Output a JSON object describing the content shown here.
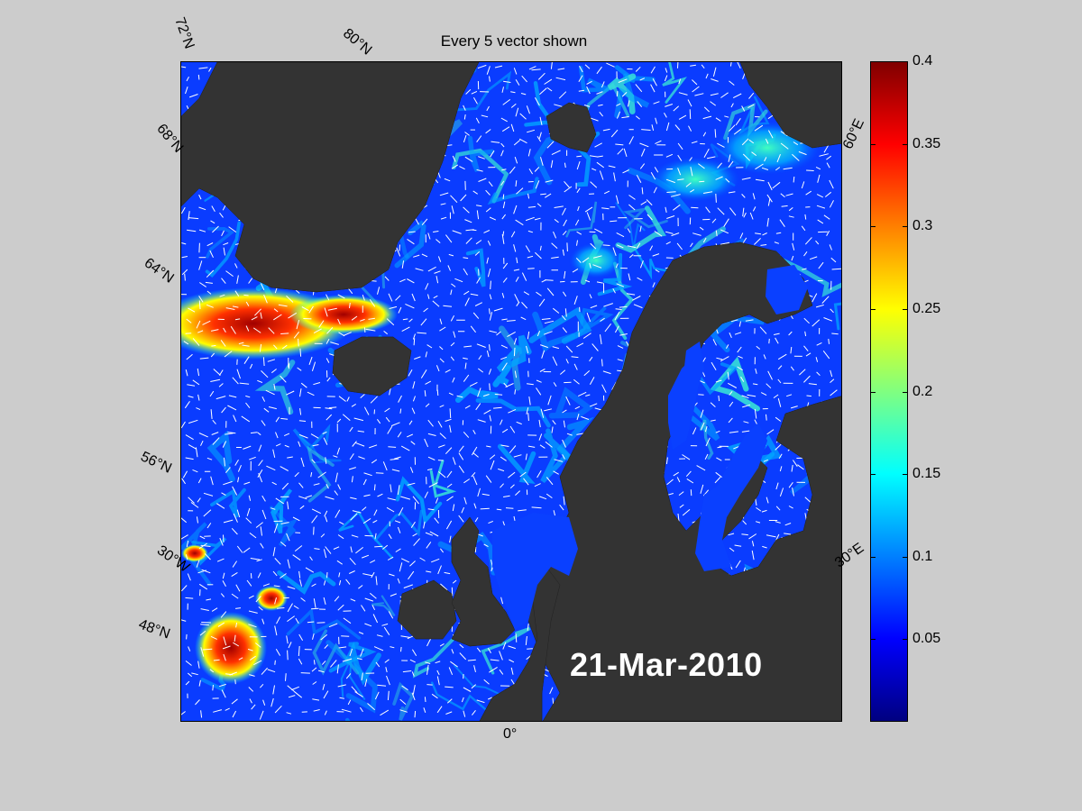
{
  "figure": {
    "title": "Every 5 vector shown",
    "date": "21-Mar-2010"
  },
  "latitude_labels": [
    "72°N",
    "80°N",
    "68°N",
    "64°N",
    "56°N",
    "48°N"
  ],
  "longitude_labels": [
    "60°E",
    "30°E",
    "30°W",
    "0°"
  ],
  "colorbar": {
    "ticks": [
      "0.4",
      "0.35",
      "0.3",
      "0.25",
      "0.2",
      "0.15",
      "0.1",
      "0.05"
    ],
    "min": 0,
    "max": 0.4,
    "colormap": "jet"
  },
  "colors": {
    "background": "#cccccc",
    "land": "#333333",
    "sea_base": "#0a3cff",
    "vectors": "#ffffff",
    "text_date": "#ffffff"
  }
}
